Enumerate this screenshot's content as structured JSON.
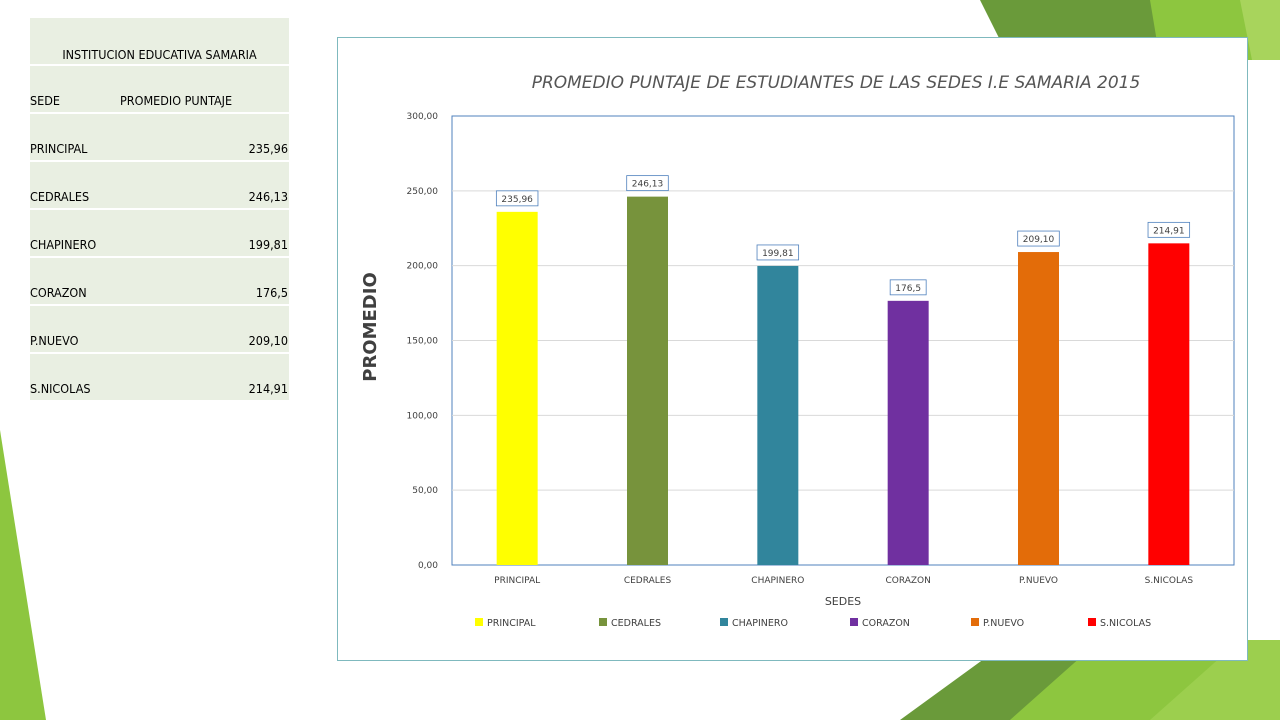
{
  "table": {
    "title": "INSTITUCION EDUCATIVA SAMARIA",
    "headers": [
      "SEDE",
      "PROMEDIO PUNTAJE"
    ],
    "rows": [
      [
        "PRINCIPAL",
        "235,96"
      ],
      [
        "CEDRALES",
        "246,13"
      ],
      [
        "CHAPINERO",
        "199,81"
      ],
      [
        "CORAZON",
        "176,5"
      ],
      [
        "P.NUEVO",
        "209,10"
      ],
      [
        "S.NICOLAS",
        "214,91"
      ]
    ]
  },
  "chart_data": {
    "type": "bar",
    "title": "PROMEDIO PUNTAJE DE ESTUDIANTES DE LAS SEDES I.E SAMARIA 2015",
    "xlabel": "SEDES",
    "ylabel": "PROMEDIO",
    "categories": [
      "PRINCIPAL",
      "CEDRALES",
      "CHAPINERO",
      "CORAZON",
      "P.NUEVO",
      "S.NICOLAS"
    ],
    "values": [
      235.96,
      246.13,
      199.81,
      176.5,
      209.1,
      214.91
    ],
    "data_labels": [
      "235,96",
      "246,13",
      "199,81",
      "176,5",
      "209,10",
      "214,91"
    ],
    "colors": [
      "#ffff00",
      "#77933c",
      "#31859c",
      "#7030a0",
      "#e36c09",
      "#ff0000"
    ],
    "ylim": [
      0,
      300
    ],
    "yticks": [
      0,
      50,
      100,
      150,
      200,
      250,
      300
    ],
    "ytick_labels": [
      "0,00",
      "50,00",
      "100,00",
      "150,00",
      "200,00",
      "250,00",
      "300,00"
    ],
    "grid": true,
    "legend": "bottom",
    "legend_entries": [
      "PRINCIPAL",
      "CEDRALES",
      "CHAPINERO",
      "CORAZON",
      "P.NUEVO",
      "S.NICOLAS"
    ]
  },
  "theme": {
    "accent_green": "#8dc63f",
    "dark_green": "#6a9a3a",
    "table_fill": "#e9efe2",
    "chart_border": "#7fb9be"
  }
}
